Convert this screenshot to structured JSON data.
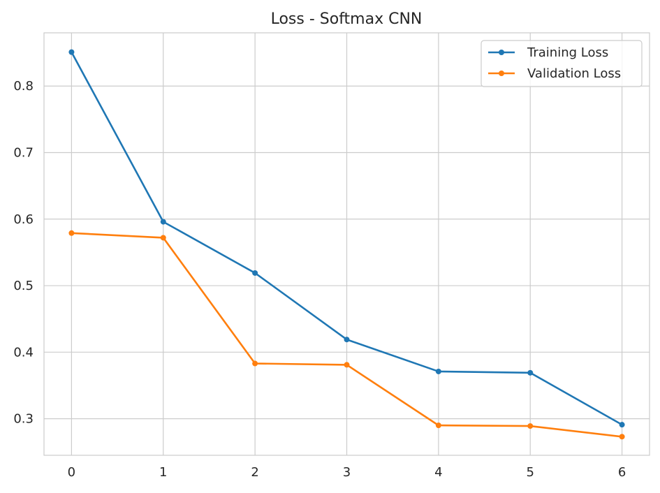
{
  "chart_data": {
    "type": "line",
    "title": "Loss - Softmax CNN",
    "xlabel": "",
    "ylabel": "",
    "x": [
      0,
      1,
      2,
      3,
      4,
      5,
      6
    ],
    "xticks": [
      "0",
      "1",
      "2",
      "3",
      "4",
      "5",
      "6"
    ],
    "yticks": [
      "0.3",
      "0.4",
      "0.5",
      "0.6",
      "0.7",
      "0.8"
    ],
    "xlim": [
      -0.3,
      6.3
    ],
    "ylim": [
      0.245,
      0.88
    ],
    "grid": true,
    "legend_position": "top-right",
    "series": [
      {
        "name": "Training Loss",
        "color": "#1f77b4",
        "values": [
          0.851,
          0.596,
          0.519,
          0.419,
          0.371,
          0.369,
          0.291
        ]
      },
      {
        "name": "Validation Loss",
        "color": "#ff7f0e",
        "values": [
          0.579,
          0.572,
          0.383,
          0.381,
          0.29,
          0.289,
          0.273
        ]
      }
    ]
  }
}
